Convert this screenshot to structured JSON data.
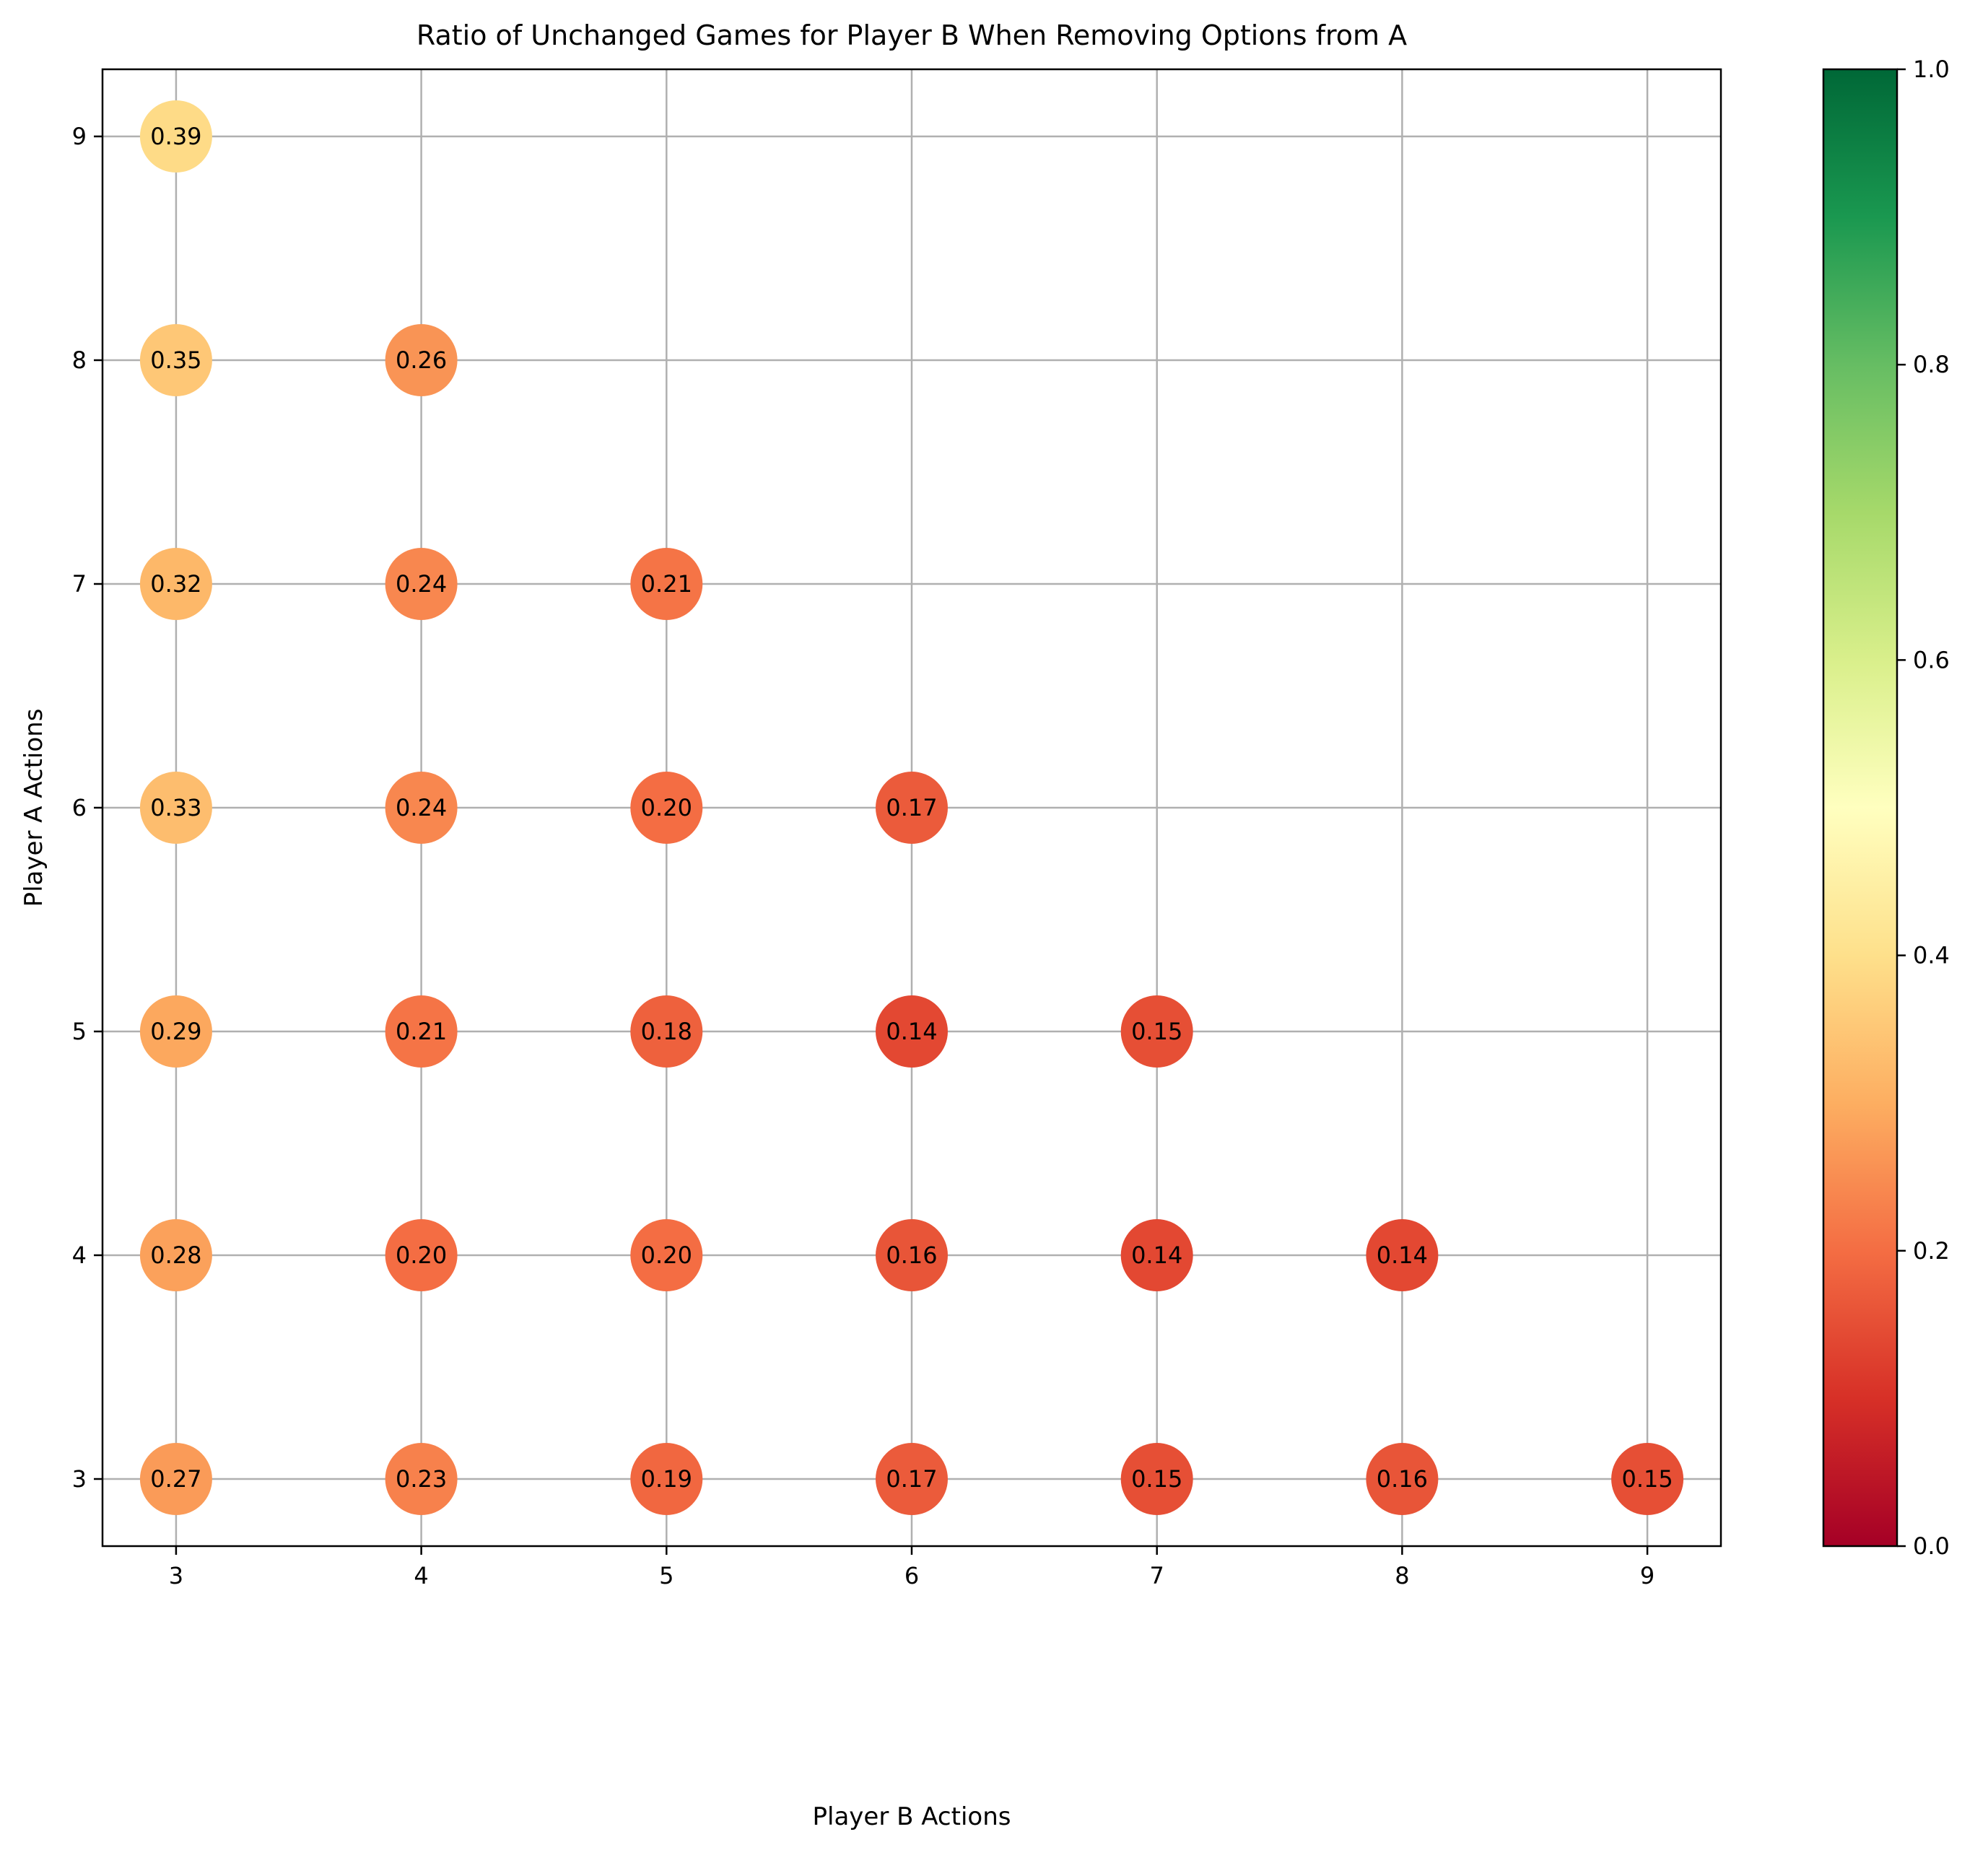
{
  "chart_data": {
    "type": "scatter",
    "title": "Ratio of Unchanged Games for Player B When Removing Options from A",
    "xlabel": "Player B Actions",
    "ylabel": "Player A Actions",
    "xlim": [
      2.7,
      9.3
    ],
    "ylim": [
      2.7,
      9.3
    ],
    "x_ticks": [
      3,
      4,
      5,
      6,
      7,
      8,
      9
    ],
    "y_ticks": [
      3,
      4,
      5,
      6,
      7,
      8,
      9
    ],
    "grid": true,
    "colormap": "RdYlGn",
    "colorbar": {
      "range": [
        0.0,
        1.0
      ],
      "ticks": [
        "0.0",
        "0.2",
        "0.4",
        "0.6",
        "0.8",
        "1.0"
      ],
      "colors": [
        "#a50026",
        "#d73027",
        "#f46d43",
        "#fdae61",
        "#fee08b",
        "#ffffbf",
        "#d9ef8b",
        "#a6d96a",
        "#66bd63",
        "#1a9850",
        "#006837"
      ]
    },
    "points": [
      {
        "x": 3,
        "y": 9,
        "value": 0.39,
        "label": "0.39"
      },
      {
        "x": 3,
        "y": 8,
        "value": 0.35,
        "label": "0.35"
      },
      {
        "x": 4,
        "y": 8,
        "value": 0.26,
        "label": "0.26"
      },
      {
        "x": 3,
        "y": 7,
        "value": 0.32,
        "label": "0.32"
      },
      {
        "x": 4,
        "y": 7,
        "value": 0.24,
        "label": "0.24"
      },
      {
        "x": 5,
        "y": 7,
        "value": 0.21,
        "label": "0.21"
      },
      {
        "x": 3,
        "y": 6,
        "value": 0.33,
        "label": "0.33"
      },
      {
        "x": 4,
        "y": 6,
        "value": 0.24,
        "label": "0.24"
      },
      {
        "x": 5,
        "y": 6,
        "value": 0.2,
        "label": "0.20"
      },
      {
        "x": 6,
        "y": 6,
        "value": 0.17,
        "label": "0.17"
      },
      {
        "x": 3,
        "y": 5,
        "value": 0.29,
        "label": "0.29"
      },
      {
        "x": 4,
        "y": 5,
        "value": 0.21,
        "label": "0.21"
      },
      {
        "x": 5,
        "y": 5,
        "value": 0.18,
        "label": "0.18"
      },
      {
        "x": 6,
        "y": 5,
        "value": 0.14,
        "label": "0.14"
      },
      {
        "x": 7,
        "y": 5,
        "value": 0.15,
        "label": "0.15"
      },
      {
        "x": 3,
        "y": 4,
        "value": 0.28,
        "label": "0.28"
      },
      {
        "x": 4,
        "y": 4,
        "value": 0.2,
        "label": "0.20"
      },
      {
        "x": 5,
        "y": 4,
        "value": 0.2,
        "label": "0.20"
      },
      {
        "x": 6,
        "y": 4,
        "value": 0.16,
        "label": "0.16"
      },
      {
        "x": 7,
        "y": 4,
        "value": 0.14,
        "label": "0.14"
      },
      {
        "x": 8,
        "y": 4,
        "value": 0.14,
        "label": "0.14"
      },
      {
        "x": 3,
        "y": 3,
        "value": 0.27,
        "label": "0.27"
      },
      {
        "x": 4,
        "y": 3,
        "value": 0.23,
        "label": "0.23"
      },
      {
        "x": 5,
        "y": 3,
        "value": 0.19,
        "label": "0.19"
      },
      {
        "x": 6,
        "y": 3,
        "value": 0.17,
        "label": "0.17"
      },
      {
        "x": 7,
        "y": 3,
        "value": 0.15,
        "label": "0.15"
      },
      {
        "x": 8,
        "y": 3,
        "value": 0.16,
        "label": "0.16"
      },
      {
        "x": 9,
        "y": 3,
        "value": 0.15,
        "label": "0.15"
      }
    ]
  }
}
